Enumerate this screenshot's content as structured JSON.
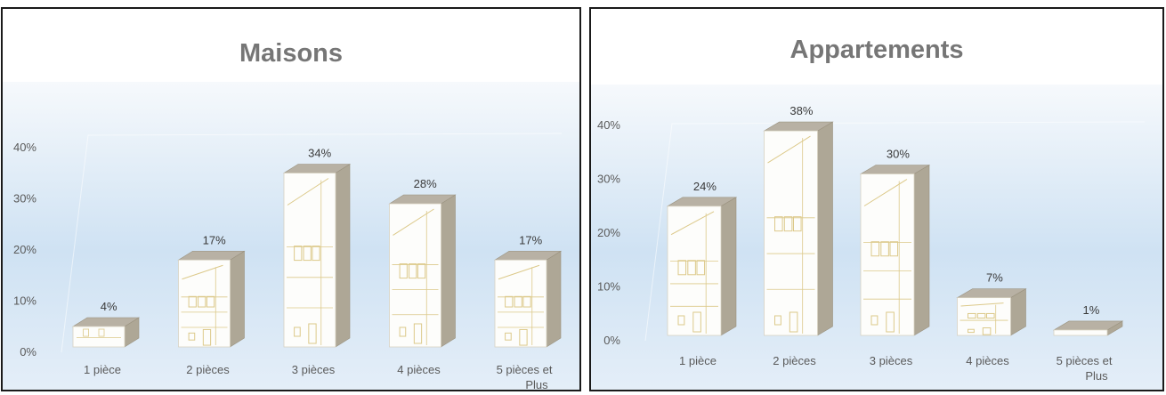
{
  "chart_data": [
    {
      "type": "bar",
      "title": "Maisons",
      "categories": [
        [
          "1 pièce"
        ],
        [
          "2 pièces"
        ],
        [
          "3 pièces"
        ],
        [
          "4 pièces"
        ],
        [
          "5 pièces et",
          "Plus"
        ]
      ],
      "values": [
        4,
        17,
        34,
        28,
        17
      ],
      "value_labels": [
        "4%",
        "17%",
        "34%",
        "28%",
        "17%"
      ],
      "y_ticks": [
        "0%",
        "10%",
        "20%",
        "30%",
        "40%"
      ],
      "ylim": [
        0,
        40
      ],
      "grid": false,
      "legend": "none",
      "style": "3d-building-columns"
    },
    {
      "type": "bar",
      "title": "Appartements",
      "categories": [
        [
          "1 pièce"
        ],
        [
          "2 pièces"
        ],
        [
          "3 pièces"
        ],
        [
          "4 pièces"
        ],
        [
          "5 pièces et",
          "Plus"
        ]
      ],
      "values": [
        24,
        38,
        30,
        7,
        1
      ],
      "value_labels": [
        "24%",
        "38%",
        "30%",
        "7%",
        "1%"
      ],
      "y_ticks": [
        "0%",
        "10%",
        "20%",
        "30%",
        "40%"
      ],
      "ylim": [
        0,
        40
      ],
      "grid": false,
      "legend": "none",
      "style": "3d-building-columns"
    }
  ],
  "colors": {
    "frame_border": "#1a1a1a",
    "title_text": "#767676",
    "axis_text": "#5a5a5a",
    "label_text": "#3a3a3a",
    "plot_bg_top": "#f6f9fc",
    "plot_bg_mid": "#cfe2f3",
    "plot_bg_bottom": "#e4eef8",
    "bar_front": "#fdfdfb",
    "bar_top": "#b8b1a4",
    "bar_side": "#aea796",
    "drawing_line": "#dcc98a"
  }
}
